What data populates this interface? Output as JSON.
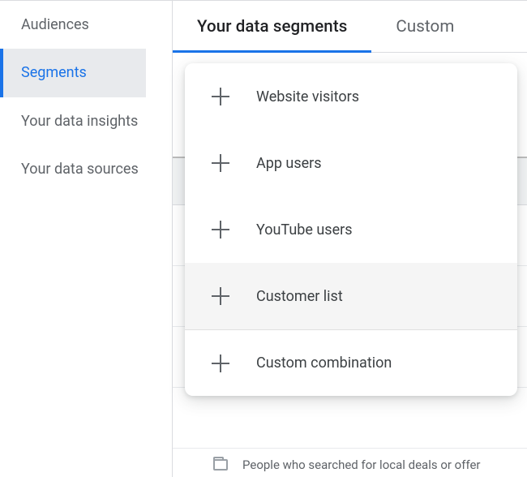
{
  "sidebar": {
    "items": [
      {
        "label": "Audiences",
        "active": false
      },
      {
        "label": "Segments",
        "active": true
      },
      {
        "label": "Your data insights",
        "active": false
      },
      {
        "label": "Your data sources",
        "active": false
      }
    ]
  },
  "tabs": [
    {
      "label": "Your data segments",
      "active": true
    },
    {
      "label": "Custom",
      "active": false
    }
  ],
  "menu": {
    "items": [
      {
        "label": "Website visitors"
      },
      {
        "label": "App users"
      },
      {
        "label": "YouTube users"
      },
      {
        "label": "Customer list"
      },
      {
        "label": "Custom combination"
      }
    ],
    "hover_index": 3,
    "separator_before_index": 4
  },
  "peek_text": "People who searched for local deals or offer",
  "colors": {
    "accent": "#1a73e8",
    "text_primary": "#202124",
    "text_secondary": "#5f6368",
    "border": "#dadce0",
    "hover_bg": "#f5f5f5",
    "sidebar_active_bg": "#e8eaed"
  }
}
